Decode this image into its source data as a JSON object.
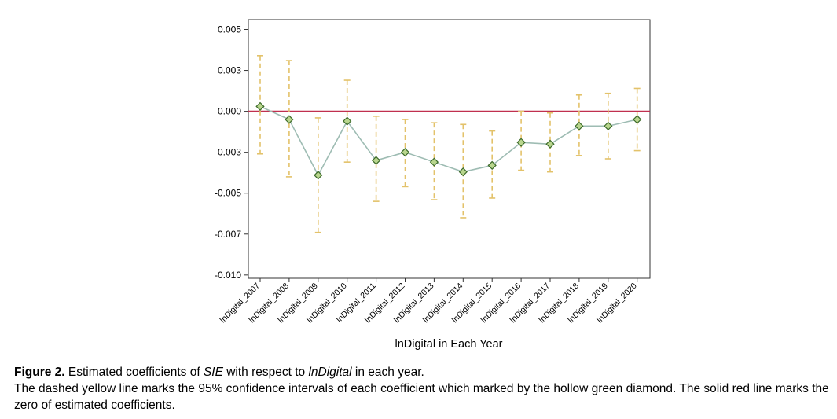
{
  "chart_data": {
    "type": "line",
    "xlabel": "lnDigital in Each Year",
    "ylabel": "",
    "categories": [
      "lnDigital_2007",
      "lnDigital_2008",
      "lnDigital_2009",
      "lnDigital_2010",
      "lnDigital_2011",
      "lnDigital_2012",
      "lnDigital_2013",
      "lnDigital_2014",
      "lnDigital_2015",
      "lnDigital_2016",
      "lnDigital_2017",
      "lnDigital_2018",
      "lnDigital_2019",
      "lnDigital_2020"
    ],
    "yticks": [
      "0.005",
      "0.003",
      "0.000",
      "-0.003",
      "-0.005",
      "-0.007",
      "-0.010"
    ],
    "ytick_values": [
      0.005,
      0.0025,
      0.0,
      -0.0025,
      -0.005,
      -0.0075,
      -0.01
    ],
    "ylim": [
      -0.0102,
      0.0056
    ],
    "grid": false,
    "series": [
      {
        "values": [
          0.0003,
          -0.0005,
          -0.0039,
          -0.0006,
          -0.003,
          -0.0025,
          -0.0031,
          -0.0037,
          -0.0033,
          -0.0019,
          -0.002,
          -0.0009,
          -0.0009,
          -0.0005
        ]
      }
    ],
    "ci_lower": [
      -0.0026,
      -0.004,
      -0.0074,
      -0.0031,
      -0.0055,
      -0.0046,
      -0.0054,
      -0.0065,
      -0.0053,
      -0.0036,
      -0.0037,
      -0.0027,
      -0.0029,
      -0.0024
    ],
    "ci_upper": [
      0.0034,
      0.0031,
      -0.0004,
      0.0019,
      -0.0003,
      -0.0005,
      -0.0007,
      -0.0008,
      -0.0012,
      0.0,
      -0.0001,
      0.001,
      0.0011,
      0.0014
    ],
    "zero_line": 0.0,
    "colors": {
      "line": "#9ebcb3",
      "marker_fill": "#b9d68e",
      "marker_edge": "#3d6b2a",
      "ci": "#e3c26a",
      "zero": "#c0304f"
    }
  },
  "caption": {
    "label": "Figure 2.",
    "title_pre": " Estimated coefficients of ",
    "title_var1": "SIE",
    "title_mid": " with respect to ",
    "title_var2": "lnDigital",
    "title_post": " in each year.",
    "body": "The dashed yellow line marks the 95% confidence intervals of each coefficient which marked by the hollow green diamond. The solid red line marks the zero of estimated coefficients."
  }
}
